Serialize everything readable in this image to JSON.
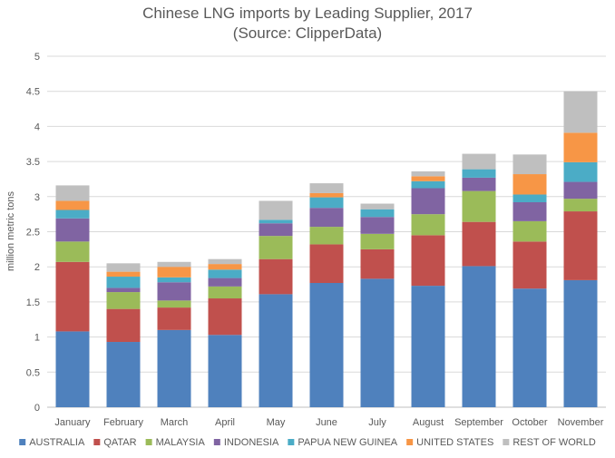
{
  "chart_data": {
    "type": "bar",
    "stacked": true,
    "title": "Chinese LNG imports by Leading Supplier, 2017",
    "subtitle": "(Source: ClipperData)",
    "xlabel": "",
    "ylabel": "million metric tons",
    "ylim": [
      0,
      5
    ],
    "yticks": [
      "0",
      "0.5",
      "1",
      "1.5",
      "2",
      "2.5",
      "3",
      "3.5",
      "4",
      "4.5",
      "5"
    ],
    "grid": true,
    "legend_position": "bottom",
    "categories": [
      "January",
      "February",
      "March",
      "April",
      "May",
      "June",
      "July",
      "August",
      "September",
      "October",
      "November"
    ],
    "series": [
      {
        "name": "AUSTRALIA",
        "color": "#4f81bd",
        "values": [
          1.08,
          0.93,
          1.1,
          1.03,
          1.61,
          1.77,
          1.83,
          1.73,
          2.01,
          1.69,
          1.81
        ]
      },
      {
        "name": "QATAR",
        "color": "#c0504d",
        "values": [
          0.99,
          0.47,
          0.32,
          0.52,
          0.5,
          0.55,
          0.42,
          0.72,
          0.63,
          0.67,
          0.98
        ]
      },
      {
        "name": "MALAYSIA",
        "color": "#9bbb59",
        "values": [
          0.29,
          0.24,
          0.1,
          0.17,
          0.33,
          0.25,
          0.22,
          0.3,
          0.44,
          0.29,
          0.18
        ]
      },
      {
        "name": "INDONESIA",
        "color": "#8064a2",
        "values": [
          0.33,
          0.06,
          0.26,
          0.12,
          0.18,
          0.27,
          0.24,
          0.37,
          0.19,
          0.27,
          0.24
        ]
      },
      {
        "name": "PAPUA NEW GUINEA",
        "color": "#4bacc6",
        "values": [
          0.12,
          0.16,
          0.07,
          0.12,
          0.05,
          0.15,
          0.11,
          0.1,
          0.12,
          0.11,
          0.28
        ]
      },
      {
        "name": "UNITED STATES",
        "color": "#f79646",
        "values": [
          0.13,
          0.07,
          0.15,
          0.08,
          0.0,
          0.06,
          0.0,
          0.07,
          0.0,
          0.29,
          0.42
        ]
      },
      {
        "name": "REST OF WORLD",
        "color": "#bfbfbf",
        "values": [
          0.22,
          0.12,
          0.07,
          0.07,
          0.27,
          0.14,
          0.08,
          0.07,
          0.22,
          0.28,
          0.59
        ]
      }
    ]
  }
}
